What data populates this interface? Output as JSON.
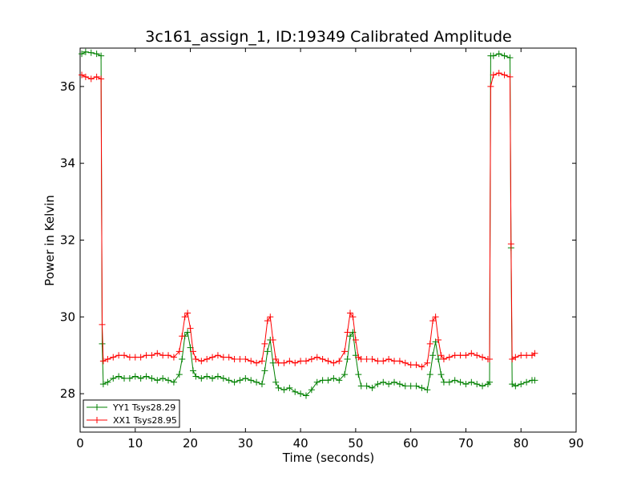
{
  "chart_data": {
    "type": "line",
    "title": "3c161_assign_1, ID:19349 Calibrated Amplitude",
    "xlabel": "Time (seconds)",
    "ylabel": "Power in Kelvin",
    "xlim": [
      0,
      90
    ],
    "ylim": [
      27,
      37
    ],
    "xticks": [
      "0",
      "10",
      "20",
      "30",
      "40",
      "50",
      "60",
      "70",
      "80",
      "90"
    ],
    "yticks": [
      "28",
      "30",
      "32",
      "34",
      "36"
    ],
    "grid": false,
    "legend_position": "lower-left",
    "marker": "plus",
    "series": [
      {
        "name": "YY1 Tsys28.29",
        "color": "#008000",
        "x": [
          0.3,
          1,
          2,
          3,
          3.8,
          4.0,
          4.2,
          5,
          6,
          7,
          8,
          9,
          10,
          11,
          12,
          13,
          14,
          15,
          16,
          17,
          18,
          18.5,
          19,
          19.5,
          20,
          20.5,
          21,
          22,
          23,
          24,
          25,
          26,
          27,
          28,
          29,
          30,
          31,
          32,
          33,
          33.5,
          34,
          34.5,
          35,
          35.5,
          36,
          37,
          38,
          39,
          40,
          41,
          42,
          43,
          44,
          45,
          46,
          47,
          48,
          48.5,
          49,
          49.5,
          50,
          50.5,
          51,
          52,
          53,
          54,
          55,
          56,
          57,
          58,
          59,
          60,
          61,
          62,
          63,
          63.5,
          64,
          64.5,
          65,
          65.5,
          66,
          67,
          68,
          69,
          70,
          71,
          72,
          73,
          74,
          74.3,
          74.5,
          75,
          76,
          77,
          78,
          78.2,
          78.4,
          79,
          80,
          81,
          82,
          82.5
        ],
        "y": [
          36.85,
          36.9,
          36.88,
          36.85,
          36.8,
          29.3,
          28.25,
          28.3,
          28.4,
          28.45,
          28.4,
          28.4,
          28.45,
          28.4,
          28.45,
          28.4,
          28.35,
          28.4,
          28.35,
          28.3,
          28.5,
          28.9,
          29.5,
          29.6,
          29.2,
          28.6,
          28.45,
          28.4,
          28.45,
          28.4,
          28.45,
          28.4,
          28.35,
          28.3,
          28.35,
          28.4,
          28.35,
          28.3,
          28.25,
          28.6,
          29.1,
          29.4,
          28.8,
          28.3,
          28.15,
          28.1,
          28.15,
          28.05,
          28.0,
          27.95,
          28.1,
          28.3,
          28.35,
          28.35,
          28.4,
          28.35,
          28.5,
          28.9,
          29.5,
          29.6,
          29.0,
          28.5,
          28.2,
          28.2,
          28.15,
          28.25,
          28.3,
          28.25,
          28.3,
          28.25,
          28.2,
          28.2,
          28.2,
          28.15,
          28.1,
          28.5,
          29.0,
          29.35,
          28.9,
          28.5,
          28.3,
          28.3,
          28.35,
          28.3,
          28.25,
          28.3,
          28.25,
          28.2,
          28.25,
          28.3,
          36.8,
          36.8,
          36.85,
          36.8,
          36.75,
          31.8,
          28.25,
          28.2,
          28.25,
          28.3,
          28.35,
          28.35
        ]
      },
      {
        "name": "XX1 Tsys28.95",
        "color": "#ff0000",
        "x": [
          0.3,
          1,
          2,
          3,
          3.8,
          4.0,
          4.2,
          5,
          6,
          7,
          8,
          9,
          10,
          11,
          12,
          13,
          14,
          15,
          16,
          17,
          18,
          18.5,
          19,
          19.5,
          20,
          20.5,
          21,
          22,
          23,
          24,
          25,
          26,
          27,
          28,
          29,
          30,
          31,
          32,
          33,
          33.5,
          34,
          34.5,
          35,
          35.5,
          36,
          37,
          38,
          39,
          40,
          41,
          42,
          43,
          44,
          45,
          46,
          47,
          48,
          48.5,
          49,
          49.5,
          50,
          50.5,
          51,
          52,
          53,
          54,
          55,
          56,
          57,
          58,
          59,
          60,
          61,
          62,
          63,
          63.5,
          64,
          64.5,
          65,
          65.5,
          66,
          67,
          68,
          69,
          70,
          71,
          72,
          73,
          74,
          74.3,
          74.5,
          75,
          76,
          77,
          78,
          78.2,
          78.4,
          79,
          80,
          81,
          82,
          82.5
        ],
        "y": [
          36.3,
          36.25,
          36.2,
          36.25,
          36.2,
          29.8,
          28.85,
          28.9,
          28.95,
          29.0,
          29.0,
          28.95,
          28.95,
          28.95,
          29.0,
          29.0,
          29.05,
          29.0,
          29.0,
          28.95,
          29.1,
          29.5,
          30.0,
          30.1,
          29.7,
          29.1,
          28.9,
          28.85,
          28.9,
          28.95,
          29.0,
          28.95,
          28.95,
          28.9,
          28.9,
          28.9,
          28.85,
          28.8,
          28.85,
          29.3,
          29.9,
          30.0,
          29.4,
          28.9,
          28.8,
          28.8,
          28.85,
          28.8,
          28.85,
          28.85,
          28.9,
          28.95,
          28.9,
          28.85,
          28.8,
          28.85,
          29.1,
          29.6,
          30.1,
          30.0,
          29.4,
          28.95,
          28.9,
          28.9,
          28.9,
          28.85,
          28.85,
          28.9,
          28.85,
          28.85,
          28.8,
          28.75,
          28.75,
          28.7,
          28.8,
          29.3,
          29.9,
          30.0,
          29.4,
          29.0,
          28.9,
          28.95,
          29.0,
          29.0,
          29.0,
          29.05,
          29.0,
          28.95,
          28.9,
          28.9,
          36.0,
          36.3,
          36.35,
          36.3,
          36.25,
          31.9,
          28.9,
          28.95,
          29.0,
          29.0,
          29.0,
          29.05
        ]
      }
    ]
  }
}
